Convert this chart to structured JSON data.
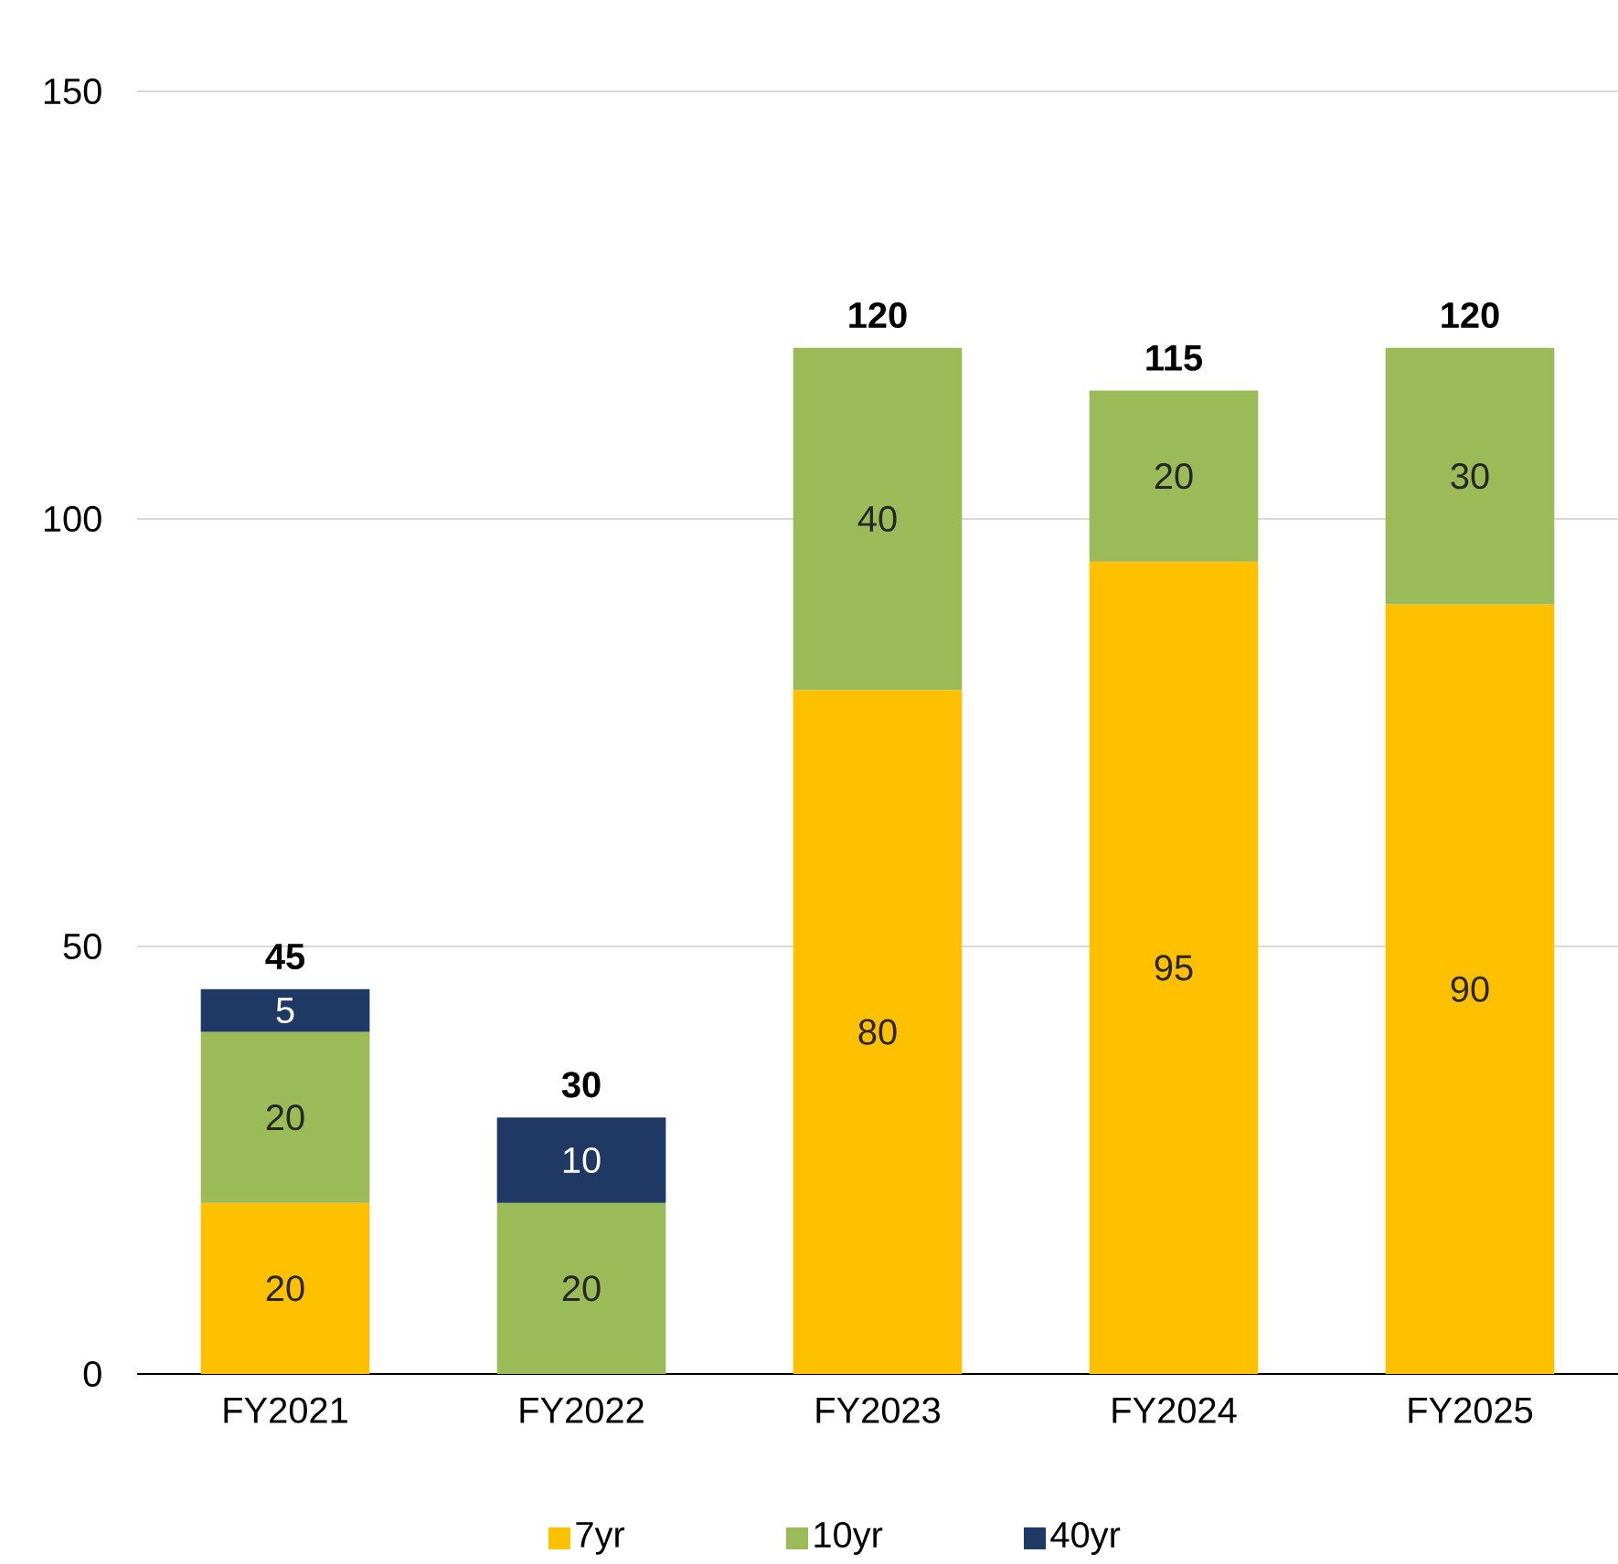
{
  "chart_data": {
    "type": "bar",
    "stacked": true,
    "categories": [
      "FY2021",
      "FY2022",
      "FY2023",
      "FY2024",
      "FY2025"
    ],
    "series": [
      {
        "name": "7yr",
        "color": "#ffc000",
        "values": [
          20,
          null,
          80,
          95,
          90
        ]
      },
      {
        "name": "10yr",
        "color": "#9bbb59",
        "values": [
          20,
          20,
          40,
          20,
          30
        ]
      },
      {
        "name": "40yr",
        "color": "#1f3864",
        "values": [
          5,
          10,
          null,
          null,
          null
        ]
      }
    ],
    "ylim": [
      0,
      150
    ],
    "yticks": [
      0,
      50,
      100,
      150
    ],
    "grid": "y",
    "legend": "bottom",
    "data_labels": true,
    "totals": [
      "45",
      "30",
      "120",
      "115",
      "120"
    ]
  }
}
